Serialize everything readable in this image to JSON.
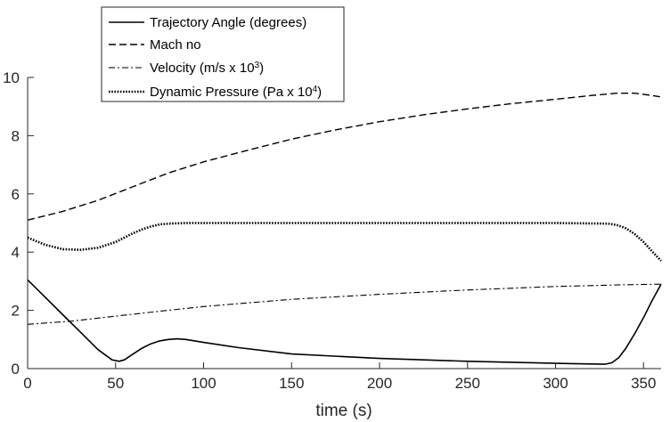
{
  "chart_data": {
    "type": "line",
    "title": "",
    "xlabel": "time (s)",
    "ylabel": "",
    "xlim": [
      0,
      360
    ],
    "ylim": [
      0,
      10
    ],
    "xticks": [
      0,
      50,
      100,
      150,
      200,
      250,
      300,
      350
    ],
    "yticks": [
      0,
      2,
      4,
      6,
      8,
      10
    ],
    "grid": false,
    "legend_position": "top-left",
    "legend": [
      {
        "base": "Trajectory Angle (degrees)",
        "sup": "",
        "tail": ""
      },
      {
        "base": "Mach no",
        "sup": "",
        "tail": ""
      },
      {
        "base": "Velocity (m/s x 10",
        "sup": "3",
        "tail": ")"
      },
      {
        "base": "Dynamic Pressure (Pa x 10",
        "sup": "4",
        "tail": ")"
      }
    ],
    "series": [
      {
        "name": "Trajectory Angle (degrees)",
        "style": "solid",
        "x": [
          0,
          10,
          20,
          30,
          40,
          48,
          52,
          55,
          60,
          65,
          70,
          75,
          80,
          85,
          90,
          95,
          100,
          120,
          150,
          200,
          250,
          300,
          320,
          328,
          332,
          336,
          340,
          345,
          350,
          355,
          360
        ],
        "y": [
          3.05,
          2.45,
          1.85,
          1.25,
          0.65,
          0.3,
          0.25,
          0.3,
          0.5,
          0.7,
          0.85,
          0.95,
          1.0,
          1.02,
          1.0,
          0.95,
          0.9,
          0.72,
          0.5,
          0.35,
          0.25,
          0.18,
          0.16,
          0.15,
          0.2,
          0.38,
          0.7,
          1.2,
          1.75,
          2.35,
          2.9
        ]
      },
      {
        "name": "Mach no",
        "style": "dashed",
        "x": [
          0,
          20,
          40,
          60,
          80,
          100,
          125,
          150,
          175,
          200,
          225,
          250,
          275,
          300,
          320,
          335,
          345,
          355,
          360
        ],
        "y": [
          5.1,
          5.4,
          5.78,
          6.25,
          6.72,
          7.1,
          7.5,
          7.88,
          8.2,
          8.48,
          8.72,
          8.92,
          9.1,
          9.25,
          9.38,
          9.46,
          9.46,
          9.38,
          9.33
        ]
      },
      {
        "name": "Velocity (m/s x 10^3)",
        "style": "dashdot",
        "x": [
          0,
          25,
          50,
          75,
          100,
          150,
          200,
          250,
          300,
          340,
          360
        ],
        "y": [
          1.52,
          1.63,
          1.8,
          1.97,
          2.13,
          2.38,
          2.55,
          2.7,
          2.82,
          2.88,
          2.9
        ]
      },
      {
        "name": "Dynamic Pressure (Pa x 10^4)",
        "style": "dotted",
        "x": [
          0,
          10,
          20,
          30,
          40,
          50,
          55,
          60,
          65,
          70,
          75,
          80,
          90,
          100,
          150,
          200,
          250,
          300,
          330,
          335,
          340,
          345,
          350,
          355,
          360
        ],
        "y": [
          4.5,
          4.25,
          4.1,
          4.08,
          4.15,
          4.35,
          4.5,
          4.65,
          4.78,
          4.88,
          4.95,
          4.98,
          5.0,
          5.0,
          5.0,
          5.0,
          5.0,
          5.0,
          4.98,
          4.93,
          4.82,
          4.62,
          4.35,
          4.02,
          3.7
        ]
      }
    ]
  }
}
